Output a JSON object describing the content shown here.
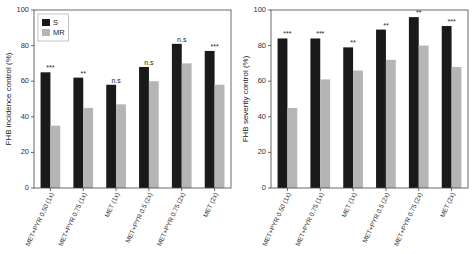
{
  "chart_data": [
    {
      "type": "bar",
      "categories": [
        "MET+PYR 0.50 (1x)",
        "MET+PYR 0.75 (1x)",
        "MET (1x)",
        "MET+PYR 0.5 (2x)",
        "MET+PYR 0.75 (2x)",
        "MET (2x)"
      ],
      "series": [
        {
          "name": "S",
          "color": "#1a1a1a",
          "values": [
            65,
            62,
            58,
            68,
            81,
            77
          ]
        },
        {
          "name": "MR",
          "color": "#b5b5b5",
          "values": [
            35,
            45,
            47,
            60,
            70,
            58
          ]
        }
      ],
      "annotations": [
        "***",
        "**",
        "n.s",
        "n.s",
        "n.s",
        "***"
      ],
      "y_label": "FHB incidence control (%)",
      "ylim": [
        0,
        100
      ],
      "yticks": [
        0,
        20,
        40,
        60,
        80,
        100
      ],
      "grid": false,
      "legend": "upper left"
    },
    {
      "type": "bar",
      "categories": [
        "MET+PYR 0.50 (1x)",
        "MET+PYR 0.75 (1x)",
        "MET (1x)",
        "MET+PYR 0.5 (2x)",
        "MET+PYR 0.75 (2x)",
        "MET (2x)"
      ],
      "series": [
        {
          "color": "#1a1a1a",
          "values": [
            84,
            84,
            79,
            89,
            96,
            91
          ]
        },
        {
          "color": "#b5b5b5",
          "values": [
            45,
            61,
            66,
            72,
            80,
            68
          ]
        }
      ],
      "annotations": [
        "***",
        "***",
        "**",
        "**",
        "**",
        "***"
      ],
      "y_label": "FHB severity control (%)",
      "ylim": [
        0,
        100
      ],
      "yticks": [
        0,
        20,
        40,
        60,
        80,
        100
      ],
      "grid": false
    }
  ]
}
